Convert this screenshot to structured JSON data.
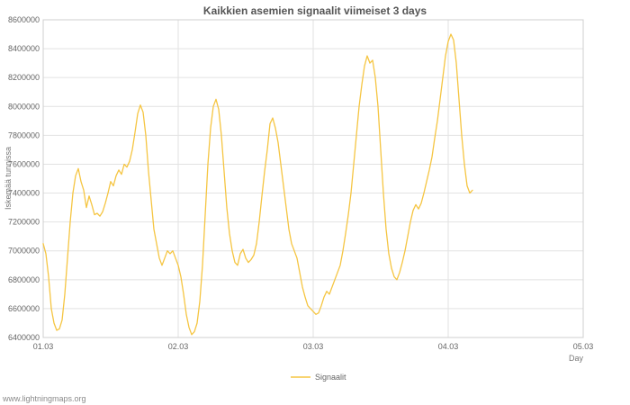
{
  "page": {
    "watermark": "www.lightningmaps.org"
  },
  "colors": {
    "series_line": "#F5C542",
    "grid": "#E2E2E2",
    "plot_border": "#CFCFCF",
    "text_muted": "#666666"
  },
  "chart_data": {
    "type": "line",
    "title": "Kaikkien asemien signaalit viimeiset 3 days",
    "xlabel": "Day",
    "ylabel": "Iskemää tunnissa",
    "grid": true,
    "legend_position": "bottom-center",
    "xlim": [
      0,
      4
    ],
    "x_ticks": [
      0,
      1,
      2,
      3,
      4
    ],
    "x_tick_labels": [
      "01.03",
      "02.03",
      "03.03",
      "04.03",
      "05.03"
    ],
    "ylim": [
      6400000,
      8600000
    ],
    "y_tick_step": 200000,
    "series": [
      {
        "name": "Signaalit",
        "color": "#F5C542",
        "points": [
          [
            0.0,
            7050000
          ],
          [
            0.02,
            6980000
          ],
          [
            0.04,
            6820000
          ],
          [
            0.06,
            6600000
          ],
          [
            0.08,
            6500000
          ],
          [
            0.1,
            6450000
          ],
          [
            0.12,
            6460000
          ],
          [
            0.14,
            6520000
          ],
          [
            0.16,
            6700000
          ],
          [
            0.18,
            6950000
          ],
          [
            0.2,
            7200000
          ],
          [
            0.22,
            7400000
          ],
          [
            0.24,
            7520000
          ],
          [
            0.26,
            7570000
          ],
          [
            0.28,
            7480000
          ],
          [
            0.3,
            7420000
          ],
          [
            0.32,
            7300000
          ],
          [
            0.34,
            7380000
          ],
          [
            0.36,
            7320000
          ],
          [
            0.38,
            7250000
          ],
          [
            0.4,
            7260000
          ],
          [
            0.42,
            7240000
          ],
          [
            0.44,
            7270000
          ],
          [
            0.46,
            7330000
          ],
          [
            0.48,
            7400000
          ],
          [
            0.5,
            7480000
          ],
          [
            0.52,
            7450000
          ],
          [
            0.54,
            7520000
          ],
          [
            0.56,
            7560000
          ],
          [
            0.58,
            7530000
          ],
          [
            0.6,
            7600000
          ],
          [
            0.62,
            7580000
          ],
          [
            0.64,
            7620000
          ],
          [
            0.66,
            7700000
          ],
          [
            0.68,
            7820000
          ],
          [
            0.7,
            7950000
          ],
          [
            0.72,
            8010000
          ],
          [
            0.74,
            7960000
          ],
          [
            0.76,
            7800000
          ],
          [
            0.78,
            7550000
          ],
          [
            0.8,
            7350000
          ],
          [
            0.82,
            7150000
          ],
          [
            0.84,
            7050000
          ],
          [
            0.86,
            6950000
          ],
          [
            0.88,
            6900000
          ],
          [
            0.9,
            6950000
          ],
          [
            0.92,
            7000000
          ],
          [
            0.94,
            6980000
          ],
          [
            0.96,
            7000000
          ],
          [
            0.98,
            6950000
          ],
          [
            1.0,
            6900000
          ],
          [
            1.02,
            6820000
          ],
          [
            1.04,
            6700000
          ],
          [
            1.06,
            6560000
          ],
          [
            1.08,
            6470000
          ],
          [
            1.1,
            6420000
          ],
          [
            1.12,
            6440000
          ],
          [
            1.14,
            6500000
          ],
          [
            1.16,
            6650000
          ],
          [
            1.18,
            6900000
          ],
          [
            1.2,
            7250000
          ],
          [
            1.22,
            7600000
          ],
          [
            1.24,
            7850000
          ],
          [
            1.26,
            8000000
          ],
          [
            1.28,
            8050000
          ],
          [
            1.3,
            7980000
          ],
          [
            1.32,
            7800000
          ],
          [
            1.34,
            7550000
          ],
          [
            1.36,
            7300000
          ],
          [
            1.38,
            7120000
          ],
          [
            1.4,
            7000000
          ],
          [
            1.42,
            6920000
          ],
          [
            1.44,
            6900000
          ],
          [
            1.46,
            6980000
          ],
          [
            1.48,
            7010000
          ],
          [
            1.5,
            6950000
          ],
          [
            1.52,
            6920000
          ],
          [
            1.54,
            6940000
          ],
          [
            1.56,
            6970000
          ],
          [
            1.58,
            7050000
          ],
          [
            1.6,
            7200000
          ],
          [
            1.62,
            7380000
          ],
          [
            1.64,
            7550000
          ],
          [
            1.66,
            7700000
          ],
          [
            1.68,
            7880000
          ],
          [
            1.7,
            7920000
          ],
          [
            1.72,
            7850000
          ],
          [
            1.74,
            7750000
          ],
          [
            1.76,
            7600000
          ],
          [
            1.78,
            7450000
          ],
          [
            1.8,
            7300000
          ],
          [
            1.82,
            7150000
          ],
          [
            1.84,
            7050000
          ],
          [
            1.86,
            7000000
          ],
          [
            1.88,
            6950000
          ],
          [
            1.9,
            6850000
          ],
          [
            1.92,
            6750000
          ],
          [
            1.94,
            6680000
          ],
          [
            1.96,
            6620000
          ],
          [
            1.98,
            6600000
          ],
          [
            2.0,
            6580000
          ],
          [
            2.02,
            6560000
          ],
          [
            2.04,
            6570000
          ],
          [
            2.06,
            6620000
          ],
          [
            2.08,
            6680000
          ],
          [
            2.1,
            6720000
          ],
          [
            2.12,
            6700000
          ],
          [
            2.14,
            6750000
          ],
          [
            2.16,
            6800000
          ],
          [
            2.18,
            6850000
          ],
          [
            2.2,
            6900000
          ],
          [
            2.22,
            7000000
          ],
          [
            2.24,
            7120000
          ],
          [
            2.26,
            7250000
          ],
          [
            2.28,
            7400000
          ],
          [
            2.3,
            7600000
          ],
          [
            2.32,
            7800000
          ],
          [
            2.34,
            8000000
          ],
          [
            2.36,
            8150000
          ],
          [
            2.38,
            8280000
          ],
          [
            2.4,
            8350000
          ],
          [
            2.42,
            8300000
          ],
          [
            2.44,
            8320000
          ],
          [
            2.46,
            8200000
          ],
          [
            2.48,
            8000000
          ],
          [
            2.5,
            7700000
          ],
          [
            2.52,
            7400000
          ],
          [
            2.54,
            7150000
          ],
          [
            2.56,
            6980000
          ],
          [
            2.58,
            6880000
          ],
          [
            2.6,
            6820000
          ],
          [
            2.62,
            6800000
          ],
          [
            2.64,
            6850000
          ],
          [
            2.66,
            6920000
          ],
          [
            2.68,
            7000000
          ],
          [
            2.7,
            7100000
          ],
          [
            2.72,
            7200000
          ],
          [
            2.74,
            7280000
          ],
          [
            2.76,
            7320000
          ],
          [
            2.78,
            7290000
          ],
          [
            2.8,
            7330000
          ],
          [
            2.82,
            7400000
          ],
          [
            2.84,
            7480000
          ],
          [
            2.86,
            7560000
          ],
          [
            2.88,
            7650000
          ],
          [
            2.9,
            7780000
          ],
          [
            2.92,
            7900000
          ],
          [
            2.94,
            8050000
          ],
          [
            2.96,
            8200000
          ],
          [
            2.98,
            8350000
          ],
          [
            3.0,
            8450000
          ],
          [
            3.02,
            8500000
          ],
          [
            3.04,
            8460000
          ],
          [
            3.06,
            8300000
          ],
          [
            3.08,
            8050000
          ],
          [
            3.1,
            7800000
          ],
          [
            3.12,
            7600000
          ],
          [
            3.14,
            7450000
          ],
          [
            3.16,
            7400000
          ],
          [
            3.18,
            7420000
          ]
        ]
      }
    ]
  }
}
